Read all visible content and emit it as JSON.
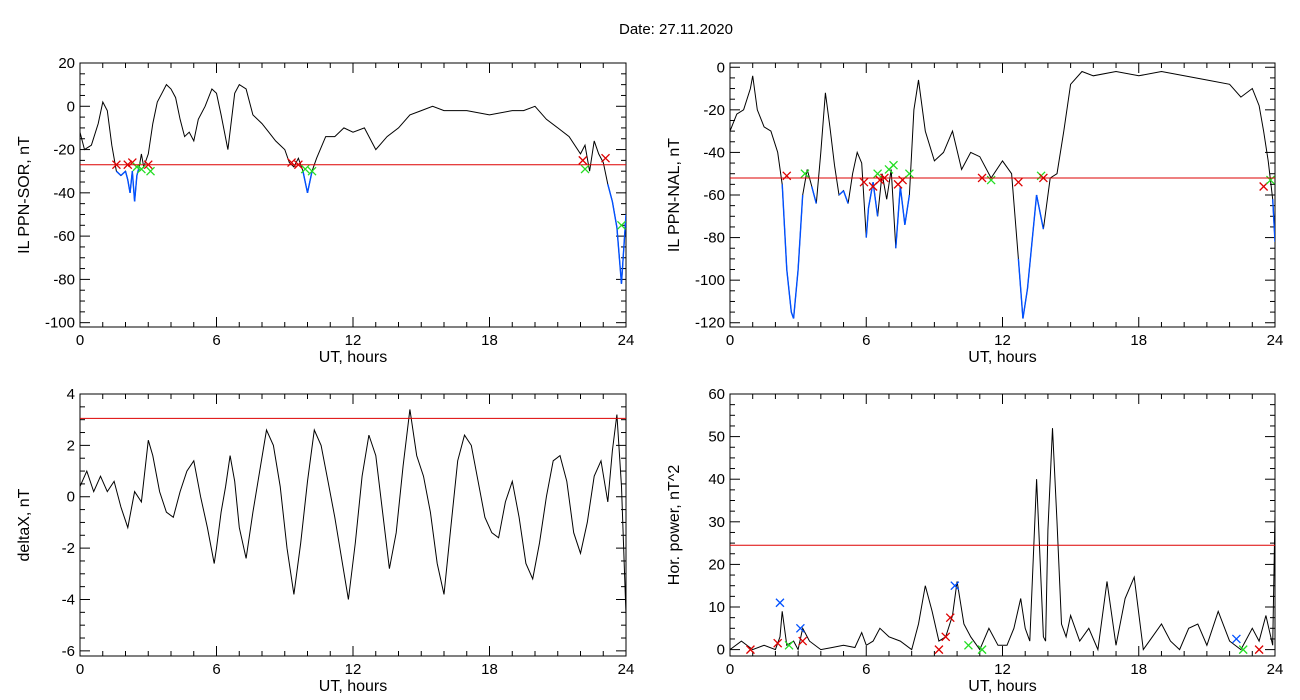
{
  "header": {
    "title": "Date:  27.11.2020"
  },
  "colors": {
    "trace": "#000000",
    "threshold": "#dd0000",
    "highlight": "#0050ff",
    "marker_red": "#dd0000",
    "marker_green": "#22dd22",
    "marker_blue": "#0050ff"
  },
  "chart_data": [
    {
      "id": "sor",
      "type": "line",
      "xlabel": "UT, hours",
      "ylabel": "IL PPN-SOR, nT",
      "xlim": [
        0,
        24
      ],
      "ylim": [
        -102,
        20
      ],
      "xticks": [
        0,
        6,
        12,
        18,
        24
      ],
      "yticks": [
        20,
        0,
        -20,
        -40,
        -60,
        -80,
        -100
      ],
      "threshold": -27,
      "grid": false,
      "x": [
        0,
        0.2,
        0.5,
        0.8,
        1.0,
        1.2,
        1.4,
        1.6,
        1.8,
        2.0,
        2.1,
        2.2,
        2.3,
        2.4,
        2.5,
        2.6,
        2.7,
        2.8,
        3.0,
        3.2,
        3.4,
        3.6,
        3.8,
        4.0,
        4.2,
        4.4,
        4.6,
        4.8,
        5.0,
        5.2,
        5.5,
        5.8,
        6.0,
        6.2,
        6.5,
        6.8,
        7.0,
        7.3,
        7.6,
        8.0,
        8.3,
        8.6,
        9.0,
        9.2,
        9.4,
        9.6,
        9.8,
        10.0,
        10.2,
        10.4,
        10.8,
        11.2,
        11.6,
        12.0,
        12.5,
        13.0,
        13.5,
        14.0,
        14.5,
        15.0,
        15.5,
        16.0,
        17.0,
        18.0,
        19.0,
        19.5,
        20.0,
        20.5,
        21.0,
        21.5,
        22.0,
        22.2,
        22.4,
        22.6,
        22.8,
        23.0,
        23.2,
        23.4,
        23.6,
        23.8,
        24.0
      ],
      "y": [
        -12,
        -20,
        -18,
        -8,
        2,
        -2,
        -18,
        -30,
        -32,
        -30,
        -34,
        -40,
        -30,
        -44,
        -32,
        -28,
        -22,
        -28,
        -22,
        -8,
        2,
        6,
        10,
        8,
        4,
        -6,
        -14,
        -12,
        -16,
        -6,
        0,
        8,
        6,
        -4,
        -20,
        6,
        10,
        8,
        -4,
        -8,
        -12,
        -16,
        -20,
        -26,
        -28,
        -24,
        -30,
        -40,
        -30,
        -24,
        -14,
        -14,
        -10,
        -12,
        -10,
        -20,
        -14,
        -10,
        -4,
        -2,
        0,
        -2,
        -2,
        -4,
        -2,
        -2,
        0,
        -6,
        -10,
        -14,
        -22,
        -18,
        -30,
        -16,
        -22,
        -26,
        -36,
        -44,
        -56,
        -82,
        -50
      ],
      "markers": [
        {
          "x": 1.6,
          "y": -27,
          "color": "red"
        },
        {
          "x": 2.1,
          "y": -27,
          "color": "red"
        },
        {
          "x": 2.3,
          "y": -26,
          "color": "red"
        },
        {
          "x": 2.5,
          "y": -28,
          "color": "green"
        },
        {
          "x": 2.7,
          "y": -29,
          "color": "green"
        },
        {
          "x": 3.0,
          "y": -27,
          "color": "red"
        },
        {
          "x": 3.1,
          "y": -30,
          "color": "green"
        },
        {
          "x": 9.3,
          "y": -26,
          "color": "red"
        },
        {
          "x": 9.6,
          "y": -27,
          "color": "red"
        },
        {
          "x": 9.9,
          "y": -29,
          "color": "green"
        },
        {
          "x": 10.2,
          "y": -30,
          "color": "green"
        },
        {
          "x": 22.1,
          "y": -25,
          "color": "red"
        },
        {
          "x": 22.2,
          "y": -29,
          "color": "green"
        },
        {
          "x": 23.1,
          "y": -24,
          "color": "red"
        },
        {
          "x": 23.8,
          "y": -55,
          "color": "green"
        }
      ]
    },
    {
      "id": "nal",
      "type": "line",
      "xlabel": "UT, hours",
      "ylabel": "IL PPN-NAL, nT",
      "xlim": [
        0,
        24
      ],
      "ylim": [
        -122,
        2
      ],
      "xticks": [
        0,
        6,
        12,
        18,
        24
      ],
      "yticks": [
        0,
        -20,
        -40,
        -60,
        -80,
        -100,
        -120
      ],
      "threshold": -52,
      "grid": false,
      "x": [
        0,
        0.3,
        0.6,
        0.9,
        1.0,
        1.2,
        1.5,
        1.8,
        2.1,
        2.3,
        2.5,
        2.7,
        2.8,
        3.0,
        3.2,
        3.4,
        3.6,
        3.8,
        4.0,
        4.2,
        4.4,
        4.6,
        4.8,
        5.0,
        5.2,
        5.4,
        5.6,
        5.8,
        6.0,
        6.1,
        6.3,
        6.5,
        6.7,
        6.9,
        7.1,
        7.3,
        7.5,
        7.7,
        7.9,
        8.1,
        8.3,
        8.6,
        9.0,
        9.4,
        9.8,
        10.2,
        10.6,
        11.0,
        11.5,
        12.0,
        12.4,
        12.7,
        12.9,
        13.1,
        13.3,
        13.5,
        13.8,
        14.1,
        14.4,
        14.7,
        15.0,
        15.5,
        16.0,
        17.0,
        18.0,
        19.0,
        20.0,
        21.0,
        22.0,
        22.5,
        23.0,
        23.3,
        23.5,
        23.7,
        23.9,
        24.0
      ],
      "y": [
        -30,
        -22,
        -20,
        -10,
        -4,
        -20,
        -28,
        -30,
        -40,
        -55,
        -95,
        -115,
        -118,
        -95,
        -60,
        -48,
        -56,
        -64,
        -40,
        -12,
        -28,
        -46,
        -60,
        -58,
        -64,
        -50,
        -40,
        -45,
        -80,
        -66,
        -54,
        -70,
        -50,
        -62,
        -48,
        -85,
        -56,
        -74,
        -60,
        -20,
        -6,
        -30,
        -44,
        -40,
        -30,
        -48,
        -40,
        -42,
        -52,
        -44,
        -50,
        -90,
        -118,
        -104,
        -82,
        -60,
        -76,
        -52,
        -50,
        -30,
        -8,
        -2,
        -4,
        -2,
        -4,
        -2,
        -4,
        -6,
        -8,
        -14,
        -10,
        -18,
        -30,
        -44,
        -62,
        -82
      ],
      "markers": [
        {
          "x": 2.5,
          "y": -51,
          "color": "red"
        },
        {
          "x": 3.3,
          "y": -50,
          "color": "green"
        },
        {
          "x": 5.9,
          "y": -54,
          "color": "red"
        },
        {
          "x": 6.3,
          "y": -56,
          "color": "red"
        },
        {
          "x": 6.5,
          "y": -50,
          "color": "green"
        },
        {
          "x": 6.6,
          "y": -53,
          "color": "red"
        },
        {
          "x": 6.8,
          "y": -52,
          "color": "red"
        },
        {
          "x": 7.0,
          "y": -48,
          "color": "green"
        },
        {
          "x": 7.2,
          "y": -46,
          "color": "green"
        },
        {
          "x": 7.4,
          "y": -55,
          "color": "red"
        },
        {
          "x": 7.6,
          "y": -53,
          "color": "red"
        },
        {
          "x": 7.9,
          "y": -50,
          "color": "green"
        },
        {
          "x": 11.1,
          "y": -52,
          "color": "red"
        },
        {
          "x": 11.5,
          "y": -53,
          "color": "green"
        },
        {
          "x": 12.7,
          "y": -54,
          "color": "red"
        },
        {
          "x": 13.7,
          "y": -51,
          "color": "green"
        },
        {
          "x": 13.8,
          "y": -52,
          "color": "red"
        },
        {
          "x": 23.5,
          "y": -56,
          "color": "red"
        },
        {
          "x": 23.8,
          "y": -53,
          "color": "green"
        }
      ]
    },
    {
      "id": "deltax",
      "type": "line",
      "xlabel": "UT, hours",
      "ylabel": "deltaX, nT",
      "xlim": [
        0,
        24
      ],
      "ylim": [
        -6.2,
        4
      ],
      "xticks": [
        0,
        6,
        12,
        18,
        24
      ],
      "yticks": [
        4,
        2,
        0,
        -2,
        -4,
        -6
      ],
      "threshold": 3.05,
      "grid": false,
      "x": [
        0,
        0.3,
        0.6,
        0.9,
        1.2,
        1.5,
        1.8,
        2.1,
        2.4,
        2.7,
        3.0,
        3.2,
        3.5,
        3.8,
        4.1,
        4.4,
        4.7,
        5.0,
        5.3,
        5.6,
        5.9,
        6.0,
        6.2,
        6.4,
        6.6,
        6.8,
        7.0,
        7.3,
        7.6,
        7.9,
        8.2,
        8.5,
        8.8,
        9.1,
        9.4,
        9.7,
        10.0,
        10.3,
        10.6,
        10.9,
        11.2,
        11.5,
        11.8,
        12.1,
        12.4,
        12.7,
        13.0,
        13.3,
        13.6,
        13.9,
        14.2,
        14.5,
        14.8,
        15.1,
        15.4,
        15.7,
        16.0,
        16.3,
        16.6,
        16.9,
        17.2,
        17.5,
        17.8,
        18.1,
        18.4,
        18.7,
        19.0,
        19.3,
        19.6,
        19.9,
        20.2,
        20.5,
        20.8,
        21.1,
        21.4,
        21.7,
        22.0,
        22.3,
        22.6,
        22.9,
        23.2,
        23.4,
        23.6,
        23.8,
        24.0
      ],
      "y": [
        0.4,
        1.0,
        0.2,
        0.8,
        0.2,
        0.6,
        -0.4,
        -1.2,
        0.2,
        -0.2,
        2.2,
        1.6,
        0.2,
        -0.6,
        -0.8,
        0.2,
        1.0,
        1.4,
        0.0,
        -1.2,
        -2.6,
        -2.0,
        -0.6,
        0.4,
        1.6,
        0.6,
        -1.2,
        -2.4,
        -0.6,
        1.0,
        2.6,
        2.0,
        0.4,
        -2.0,
        -3.8,
        -1.8,
        0.6,
        2.6,
        2.0,
        0.6,
        -0.8,
        -2.4,
        -4.0,
        -1.8,
        0.8,
        2.4,
        1.6,
        -0.6,
        -2.8,
        -1.4,
        1.2,
        3.4,
        1.6,
        0.8,
        -0.6,
        -2.6,
        -3.8,
        -1.2,
        1.4,
        2.4,
        2.0,
        0.6,
        -0.8,
        -1.4,
        -1.6,
        -0.2,
        0.6,
        -0.8,
        -2.6,
        -3.2,
        -1.8,
        0.0,
        1.4,
        1.6,
        0.6,
        -1.4,
        -2.2,
        -1.0,
        0.8,
        1.4,
        -0.2,
        1.8,
        3.2,
        0.4,
        -4.6
      ]
    },
    {
      "id": "power",
      "type": "line",
      "xlabel": "UT, hours",
      "ylabel": "Hor. power, nT^2",
      "xlim": [
        0,
        24
      ],
      "ylim": [
        -1.5,
        60
      ],
      "xticks": [
        0,
        6,
        12,
        18,
        24
      ],
      "yticks": [
        60,
        50,
        40,
        30,
        20,
        10,
        0
      ],
      "threshold": 24.5,
      "grid": false,
      "x": [
        0,
        0.5,
        1.0,
        1.5,
        2.0,
        2.2,
        2.3,
        2.5,
        2.8,
        3.0,
        3.2,
        3.5,
        4.0,
        4.5,
        5.0,
        5.5,
        5.8,
        6.0,
        6.3,
        6.6,
        7.0,
        7.5,
        8.0,
        8.3,
        8.6,
        8.9,
        9.2,
        9.5,
        9.8,
        10.0,
        10.3,
        10.6,
        11.0,
        11.4,
        11.8,
        12.2,
        12.5,
        12.8,
        13.0,
        13.2,
        13.5,
        13.8,
        13.9,
        14.0,
        14.2,
        14.4,
        14.6,
        14.8,
        15.0,
        15.4,
        15.8,
        16.2,
        16.6,
        17.0,
        17.4,
        17.8,
        18.2,
        18.6,
        19.0,
        19.4,
        19.8,
        20.2,
        20.6,
        21.0,
        21.5,
        22.0,
        22.5,
        23.0,
        23.3,
        23.6,
        23.9,
        24.0
      ],
      "y": [
        0,
        2,
        0,
        1,
        0,
        3,
        9,
        1,
        2,
        0,
        5,
        2,
        0,
        0.5,
        1,
        0.5,
        4,
        1,
        2,
        5,
        3,
        2,
        0,
        6,
        15,
        9,
        2,
        3,
        8,
        16,
        6,
        3,
        0,
        5,
        1,
        1,
        5,
        12,
        5,
        2,
        40,
        3,
        2,
        28,
        52,
        30,
        6,
        3,
        8,
        2,
        5,
        0,
        16,
        1,
        12,
        17,
        0,
        3,
        6,
        2,
        0,
        5,
        6,
        1,
        9,
        2,
        0,
        5,
        2,
        8,
        1,
        32
      ],
      "markers": [
        {
          "x": 0.9,
          "y": 0,
          "color": "red"
        },
        {
          "x": 2.1,
          "y": 1.5,
          "color": "red"
        },
        {
          "x": 2.2,
          "y": 11,
          "color": "blue"
        },
        {
          "x": 2.6,
          "y": 1,
          "color": "green"
        },
        {
          "x": 3.1,
          "y": 5,
          "color": "blue"
        },
        {
          "x": 3.2,
          "y": 2,
          "color": "red"
        },
        {
          "x": 9.2,
          "y": 0,
          "color": "red"
        },
        {
          "x": 9.5,
          "y": 3,
          "color": "red"
        },
        {
          "x": 9.7,
          "y": 7.5,
          "color": "red"
        },
        {
          "x": 9.9,
          "y": 15,
          "color": "blue"
        },
        {
          "x": 10.5,
          "y": 1,
          "color": "green"
        },
        {
          "x": 11.1,
          "y": 0,
          "color": "green"
        },
        {
          "x": 22.3,
          "y": 2.5,
          "color": "blue"
        },
        {
          "x": 22.6,
          "y": 0,
          "color": "green"
        },
        {
          "x": 23.3,
          "y": 0,
          "color": "red"
        }
      ]
    }
  ]
}
